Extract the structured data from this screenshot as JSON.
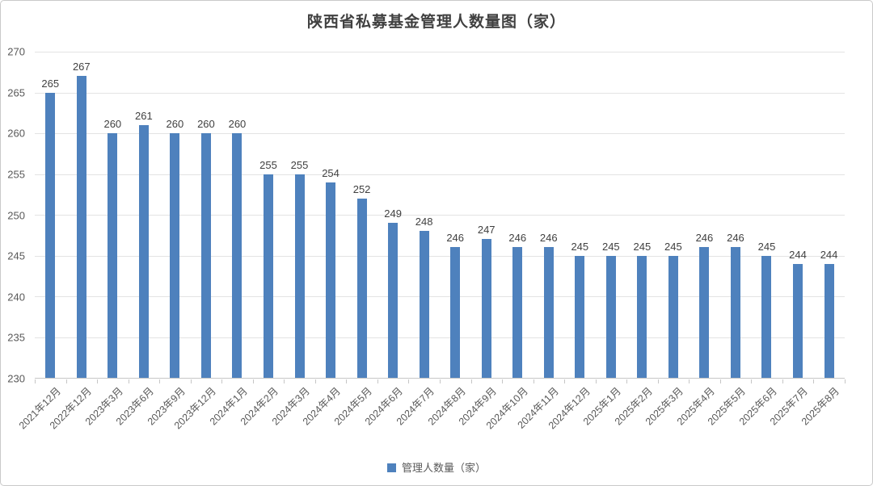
{
  "chart_data": {
    "type": "bar",
    "title": "陕西省私募基金管理人数量图（家）",
    "categories": [
      "2021年12月",
      "2022年12月",
      "2023年3月",
      "2023年6月",
      "2023年9月",
      "2023年12月",
      "2024年1月",
      "2024年2月",
      "2024年3月",
      "2024年4月",
      "2024年5月",
      "2024年6月",
      "2024年7月",
      "2024年8月",
      "2024年9月",
      "2024年10月",
      "2024年11月",
      "2024年12月",
      "2025年1月",
      "2025年2月",
      "2025年3月",
      "2025年4月",
      "2025年5月",
      "2025年6月",
      "2025年7月",
      "2025年8月"
    ],
    "series": [
      {
        "name": "管理人数量（家）",
        "values": [
          265,
          267,
          260,
          261,
          260,
          260,
          260,
          255,
          255,
          254,
          252,
          249,
          248,
          246,
          247,
          246,
          246,
          245,
          245,
          245,
          245,
          246,
          246,
          245,
          244,
          244
        ]
      }
    ],
    "xlabel": "",
    "ylabel": "",
    "ylim": [
      230,
      270
    ],
    "yticks": [
      230,
      235,
      240,
      245,
      250,
      255,
      260,
      265,
      270
    ],
    "grid": "horizontal",
    "data_labels": true,
    "legend_position": "bottom",
    "colors": {
      "bar": "#4e81bd",
      "title_text": "#404040",
      "value_label_text": "#404040",
      "axis_text": "#595959",
      "gridline": "#e3e3e3",
      "axis_line": "#c6c6c6",
      "frame_border": "#c9c9c9"
    }
  }
}
